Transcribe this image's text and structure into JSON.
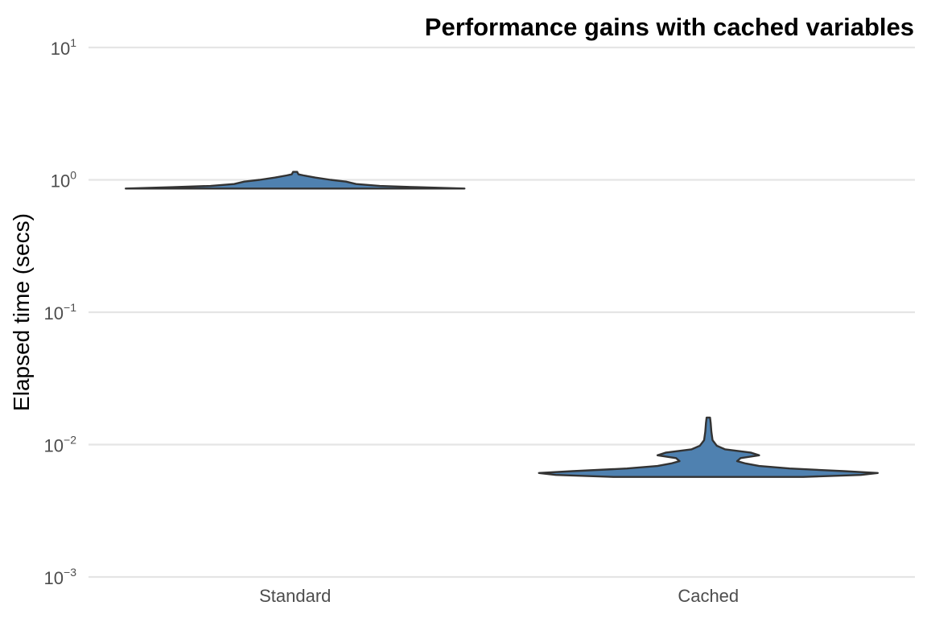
{
  "chart_data": {
    "type": "violin",
    "title": "Performance gains with cached variables",
    "xlabel": "",
    "ylabel": "Elapsed time (secs)",
    "y_scale": "log10",
    "ylim": [
      0.001,
      10
    ],
    "y_ticks": [
      {
        "value": 0.001,
        "base": "10",
        "exp": "−3"
      },
      {
        "value": 0.01,
        "base": "10",
        "exp": "−2"
      },
      {
        "value": 0.1,
        "base": "10",
        "exp": "−1"
      },
      {
        "value": 1,
        "base": "10",
        "exp": "0"
      },
      {
        "value": 10,
        "base": "10",
        "exp": "1"
      }
    ],
    "categories": [
      "Standard",
      "Cached"
    ],
    "grid": true,
    "legend": "none",
    "fill_color": "#4f81b0",
    "outline_color": "#333333",
    "grid_color": "#e5e5e5",
    "series": [
      {
        "category": "Standard",
        "profile": [
          {
            "y": 0.86,
            "w": 1.0
          },
          {
            "y": 0.88,
            "w": 0.72
          },
          {
            "y": 0.9,
            "w": 0.5
          },
          {
            "y": 0.93,
            "w": 0.36
          },
          {
            "y": 0.97,
            "w": 0.3
          },
          {
            "y": 1.0,
            "w": 0.21
          },
          {
            "y": 1.04,
            "w": 0.12
          },
          {
            "y": 1.08,
            "w": 0.05
          },
          {
            "y": 1.1,
            "w": 0.02
          },
          {
            "y": 1.13,
            "w": 0.015
          },
          {
            "y": 1.15,
            "w": 0.012
          }
        ]
      },
      {
        "category": "Cached",
        "profile": [
          {
            "y": 0.0057,
            "w": 0.56
          },
          {
            "y": 0.0059,
            "w": 0.9
          },
          {
            "y": 0.0061,
            "w": 1.0
          },
          {
            "y": 0.0063,
            "w": 0.8
          },
          {
            "y": 0.0066,
            "w": 0.48
          },
          {
            "y": 0.0069,
            "w": 0.3
          },
          {
            "y": 0.0072,
            "w": 0.22
          },
          {
            "y": 0.0075,
            "w": 0.17
          },
          {
            "y": 0.0079,
            "w": 0.19
          },
          {
            "y": 0.0083,
            "w": 0.3
          },
          {
            "y": 0.0087,
            "w": 0.25
          },
          {
            "y": 0.0092,
            "w": 0.1
          },
          {
            "y": 0.0098,
            "w": 0.05
          },
          {
            "y": 0.0108,
            "w": 0.025
          },
          {
            "y": 0.0125,
            "w": 0.018
          },
          {
            "y": 0.0145,
            "w": 0.014
          },
          {
            "y": 0.016,
            "w": 0.01
          }
        ]
      }
    ]
  }
}
